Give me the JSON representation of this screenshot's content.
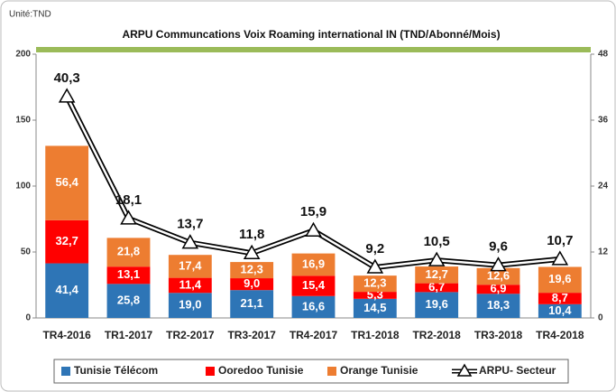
{
  "chart_data": {
    "type": "stacked-bar-line",
    "unit": "Unité:TND",
    "title": "ARPU Communcations  Voix Roaming international IN  (TND/Abonné/Mois)",
    "categories": [
      "TR4-2016",
      "TR1-2017",
      "TR2-2017",
      "TR3-2017",
      "TR4-2017",
      "TR1-2018",
      "TR2-2018",
      "TR3-2018",
      "TR4-2018"
    ],
    "series": [
      {
        "name": "Tunisie Télécom",
        "color": "#2e75b6",
        "values": [
          41.4,
          25.8,
          19.0,
          21.1,
          16.6,
          14.5,
          19.6,
          18.3,
          10.4
        ],
        "value_labels": [
          "41,4",
          "25,8",
          "19,0",
          "21,1",
          "16,6",
          "14,5",
          "19,6",
          "18,3",
          "10,4"
        ]
      },
      {
        "name": "Ooredoo Tunisie",
        "color": "#ff0000",
        "values": [
          32.7,
          13.1,
          11.4,
          9.0,
          15.4,
          5.3,
          6.7,
          6.9,
          8.7
        ],
        "value_labels": [
          "32,7",
          "13,1",
          "11,4",
          "9,0",
          "15,4",
          "5,3",
          "6,7",
          "6,9",
          "8,7"
        ]
      },
      {
        "name": "Orange Tunisie",
        "color": "#ed7d31",
        "values": [
          56.4,
          21.8,
          17.4,
          12.3,
          16.9,
          12.3,
          12.7,
          12.6,
          19.6
        ],
        "value_labels": [
          "56,4",
          "21,8",
          "17,4",
          "12,3",
          "16,9",
          "12,3",
          "12,7",
          "12,6",
          "19,6"
        ]
      },
      {
        "name": "ARPU- Secteur",
        "color": "#000000",
        "axis": "y2",
        "values": [
          40.3,
          18.1,
          13.7,
          11.8,
          15.9,
          9.2,
          10.5,
          9.6,
          10.7
        ],
        "value_labels": [
          "40,3",
          "18,1",
          "13,7",
          "11,8",
          "15,9",
          "9,2",
          "10,5",
          "9,6",
          "10,7"
        ]
      }
    ],
    "ylim": [
      0,
      200
    ],
    "yticks": [
      0,
      50,
      100,
      150,
      200
    ],
    "y2lim": [
      0,
      48
    ],
    "y2ticks": [
      0,
      12,
      24,
      36,
      48
    ]
  }
}
